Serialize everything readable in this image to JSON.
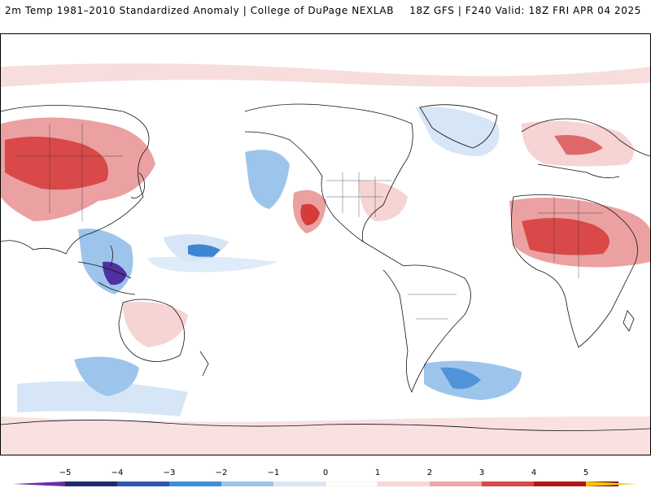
{
  "header": {
    "title_left": "2m Temp 1981–2010 Standardized Anomaly | College of DuPage NEXLAB",
    "title_right": "18Z GFS | F240 Valid: 18Z FRI APR 04 2025"
  },
  "colorbar": {
    "tick_labels": [
      "−5",
      "−4",
      "−3",
      "−2",
      "−1",
      "0",
      "1",
      "2",
      "3",
      "4",
      "5"
    ],
    "colors": {
      "below_-5": "#6a2fa0",
      "-5_-4": "#1f2c6b",
      "-4_-3": "#2d5aa8",
      "-3_-2": "#3d8fd6",
      "-2_-1": "#9cc4ec",
      "-1_0": "#d9e7f5",
      "0_1": "#ffffff",
      "1_2": "#f7d6d6",
      "2_3": "#eda7a7",
      "3_4": "#d94a4a",
      "4_5": "#b01818",
      "above_5": "#6e0a0a",
      "extreme": "#f5c800"
    }
  },
  "map": {
    "projection": "global equirectangular, Pacific-centered",
    "anomaly_colors": {
      "warm_light": "#f6d4d4",
      "warm_mid": "#eba1a1",
      "warm_strong": "#d63a3a",
      "cool_light": "#d6e6f6",
      "cool_mid": "#9dc5ec",
      "cool_strong": "#3f86d2",
      "cool_extreme": "#5030a0",
      "coastline": "#111111"
    }
  }
}
